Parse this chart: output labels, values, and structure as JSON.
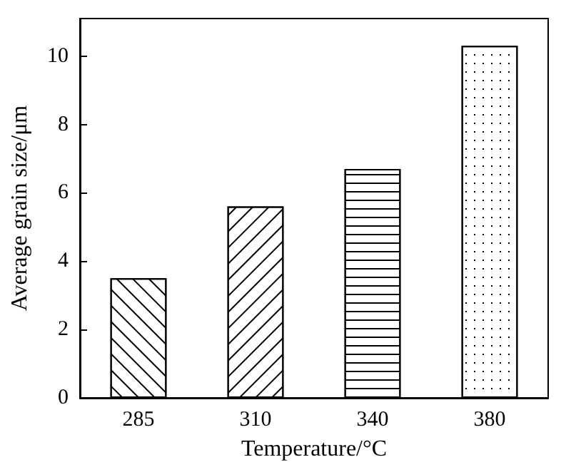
{
  "chart_data": {
    "type": "bar",
    "xlabel": "Temperature/°C",
    "ylabel": "Average grain size/μm",
    "categories": [
      "285",
      "310",
      "340",
      "380"
    ],
    "values": [
      3.5,
      5.6,
      6.7,
      10.3
    ],
    "color": "#ffffff",
    "ylim": [
      0,
      11.1
    ],
    "yticks": [
      0,
      2,
      4,
      6,
      8,
      10
    ],
    "grid": false
  }
}
